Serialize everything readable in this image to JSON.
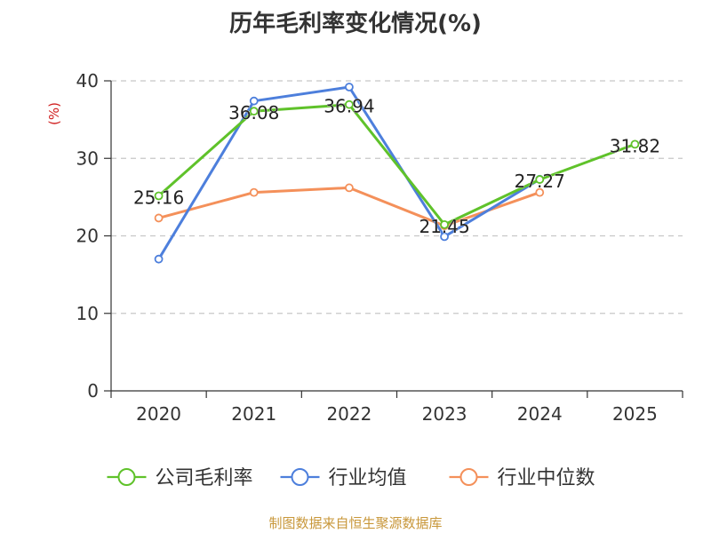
{
  "chart_data": {
    "type": "line",
    "title": "历年毛利率变化情况(%)",
    "ylabel": "(%)",
    "categories": [
      "2020",
      "2021",
      "2022",
      "2023",
      "2024",
      "2025"
    ],
    "ylim": [
      0,
      40
    ],
    "yticks": [
      0,
      10,
      20,
      30,
      40
    ],
    "grid": true,
    "legend_position": "bottom",
    "series": [
      {
        "name": "公司毛利率",
        "color": "#5fc22a",
        "values": [
          25.16,
          36.08,
          36.94,
          21.45,
          27.27,
          31.82
        ],
        "labels": [
          "25.16",
          "36.08",
          "36.94",
          "21.45",
          "27.27",
          "31.82"
        ]
      },
      {
        "name": "行业均值",
        "color": "#4d7fdc",
        "values": [
          17.0,
          37.4,
          39.2,
          19.9,
          27.3,
          null
        ]
      },
      {
        "name": "行业中位数",
        "color": "#f4905a",
        "values": [
          22.3,
          25.6,
          26.2,
          21.3,
          25.6,
          null
        ]
      }
    ]
  },
  "source": "制图数据来自恒生聚源数据库"
}
